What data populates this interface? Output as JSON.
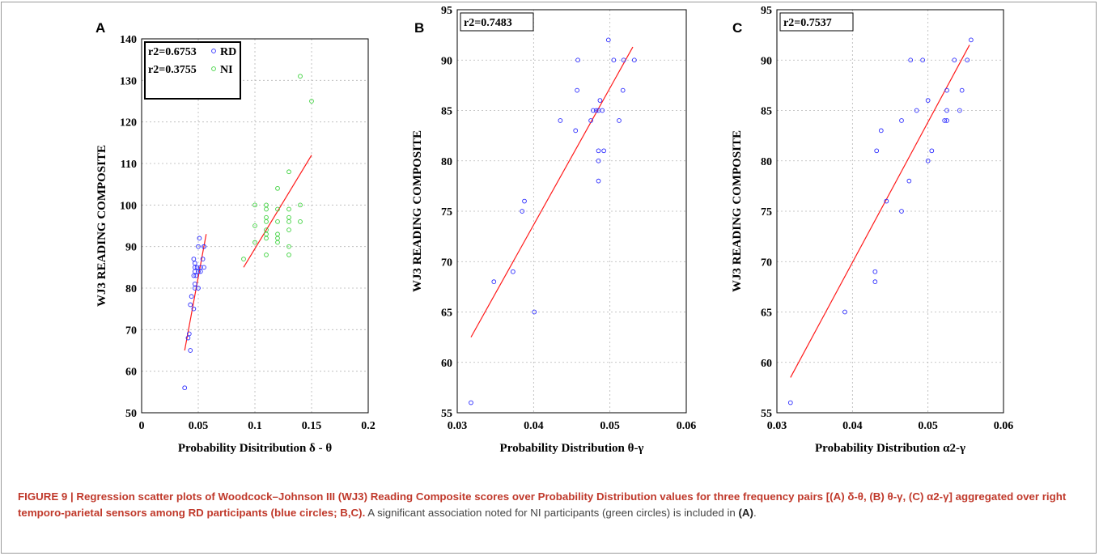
{
  "chart_data": [
    {
      "panel": "A",
      "type": "scatter",
      "xlabel": "Probability Disitribution δ - θ",
      "ylabel": "WJ3 READING COMPOSITE",
      "xlim": [
        0,
        0.2
      ],
      "ylim": [
        50,
        140
      ],
      "xticks": [
        "0",
        "0.05",
        "0.1",
        "0.15",
        "0.2"
      ],
      "yticks": [
        "50",
        "60",
        "70",
        "80",
        "90",
        "100",
        "110",
        "120",
        "130",
        "140"
      ],
      "grid": true,
      "legend": {
        "placement": "top-left",
        "entries": [
          {
            "text": "r2=0.6753",
            "series": "RD"
          },
          {
            "text": "r2=0.3755",
            "series": "NI"
          }
        ]
      },
      "series": [
        {
          "name": "RD",
          "color": "#2a2aff",
          "points": [
            [
              0.038,
              56
            ],
            [
              0.043,
              65
            ],
            [
              0.041,
              68
            ],
            [
              0.042,
              69
            ],
            [
              0.046,
              75
            ],
            [
              0.043,
              76
            ],
            [
              0.044,
              78
            ],
            [
              0.047,
              80
            ],
            [
              0.05,
              80
            ],
            [
              0.047,
              81
            ],
            [
              0.046,
              83
            ],
            [
              0.048,
              83
            ],
            [
              0.047,
              84
            ],
            [
              0.05,
              84
            ],
            [
              0.052,
              84
            ],
            [
              0.047,
              85
            ],
            [
              0.049,
              85
            ],
            [
              0.052,
              85
            ],
            [
              0.055,
              85
            ],
            [
              0.047,
              86
            ],
            [
              0.046,
              87
            ],
            [
              0.054,
              87
            ],
            [
              0.05,
              90
            ],
            [
              0.055,
              90
            ],
            [
              0.055,
              90
            ],
            [
              0.051,
              92
            ]
          ],
          "fit": [
            [
              0.038,
              65
            ],
            [
              0.057,
              93
            ]
          ]
        },
        {
          "name": "NI",
          "color": "#3ad13a",
          "points": [
            [
              0.09,
              87
            ],
            [
              0.11,
              88
            ],
            [
              0.12,
              91
            ],
            [
              0.13,
              88
            ],
            [
              0.1,
              91
            ],
            [
              0.11,
              92
            ],
            [
              0.12,
              92
            ],
            [
              0.13,
              90
            ],
            [
              0.11,
              93
            ],
            [
              0.12,
              93
            ],
            [
              0.11,
              94
            ],
            [
              0.13,
              94
            ],
            [
              0.1,
              95
            ],
            [
              0.11,
              96
            ],
            [
              0.12,
              96
            ],
            [
              0.13,
              96
            ],
            [
              0.14,
              96
            ],
            [
              0.11,
              97
            ],
            [
              0.13,
              97
            ],
            [
              0.11,
              99
            ],
            [
              0.12,
              99
            ],
            [
              0.13,
              99
            ],
            [
              0.1,
              100
            ],
            [
              0.11,
              100
            ],
            [
              0.14,
              100
            ],
            [
              0.12,
              104
            ],
            [
              0.13,
              108
            ],
            [
              0.15,
              125
            ],
            [
              0.14,
              131
            ]
          ],
          "fit": [
            [
              0.09,
              85
            ],
            [
              0.15,
              112
            ]
          ]
        }
      ]
    },
    {
      "panel": "B",
      "type": "scatter",
      "xlabel": "Probability Distribution  θ-γ",
      "ylabel": "WJ3 READING COMPOSITE",
      "xlim": [
        0.03,
        0.06
      ],
      "ylim": [
        55,
        95
      ],
      "xticks": [
        "0.03",
        "0.04",
        "0.05",
        "0.06"
      ],
      "yticks": [
        "55",
        "60",
        "65",
        "70",
        "75",
        "80",
        "85",
        "90",
        "95"
      ],
      "grid": true,
      "legend": {
        "placement": "top-left",
        "entries": [
          {
            "text": "r2=0.7483"
          }
        ]
      },
      "series": [
        {
          "color": "#2a2aff",
          "points": [
            [
              0.0318,
              56
            ],
            [
              0.0348,
              68
            ],
            [
              0.0373,
              69
            ],
            [
              0.0401,
              65
            ],
            [
              0.0385,
              75
            ],
            [
              0.0388,
              76
            ],
            [
              0.0485,
              78
            ],
            [
              0.0485,
              80
            ],
            [
              0.0485,
              81
            ],
            [
              0.0492,
              81
            ],
            [
              0.0455,
              83
            ],
            [
              0.0435,
              84
            ],
            [
              0.0512,
              84
            ],
            [
              0.0475,
              84
            ],
            [
              0.0478,
              85
            ],
            [
              0.0482,
              85
            ],
            [
              0.0485,
              85
            ],
            [
              0.049,
              85
            ],
            [
              0.0487,
              86
            ],
            [
              0.0457,
              87
            ],
            [
              0.0517,
              87
            ],
            [
              0.0458,
              90
            ],
            [
              0.0505,
              90
            ],
            [
              0.0518,
              90
            ],
            [
              0.0532,
              90
            ],
            [
              0.0498,
              92
            ]
          ],
          "fit": [
            [
              0.0318,
              62.5
            ],
            [
              0.053,
              91.3
            ]
          ]
        }
      ]
    },
    {
      "panel": "C",
      "type": "scatter",
      "xlabel": "Probability Distribution  α2-γ",
      "ylabel": "WJ3 READING COMPOSITE",
      "xlim": [
        0.03,
        0.06
      ],
      "ylim": [
        55,
        95
      ],
      "xticks": [
        "0.03",
        "0.04",
        "0.05",
        "0.06"
      ],
      "yticks": [
        "55",
        "60",
        "65",
        "70",
        "75",
        "80",
        "85",
        "90",
        "95"
      ],
      "grid": true,
      "legend": {
        "placement": "top-left",
        "entries": [
          {
            "text": "r2=0.7537"
          }
        ]
      },
      "series": [
        {
          "color": "#2a2aff",
          "points": [
            [
              0.0318,
              56
            ],
            [
              0.039,
              65
            ],
            [
              0.043,
              68
            ],
            [
              0.043,
              69
            ],
            [
              0.0465,
              75
            ],
            [
              0.0445,
              76
            ],
            [
              0.0475,
              78
            ],
            [
              0.05,
              80
            ],
            [
              0.0505,
              81
            ],
            [
              0.0432,
              81
            ],
            [
              0.0438,
              83
            ],
            [
              0.0522,
              84
            ],
            [
              0.0525,
              84
            ],
            [
              0.0465,
              84
            ],
            [
              0.0485,
              85
            ],
            [
              0.0525,
              85
            ],
            [
              0.0542,
              85
            ],
            [
              0.05,
              86
            ],
            [
              0.0525,
              87
            ],
            [
              0.0545,
              87
            ],
            [
              0.0477,
              90
            ],
            [
              0.0493,
              90
            ],
            [
              0.0535,
              90
            ],
            [
              0.0552,
              90
            ],
            [
              0.0557,
              92
            ]
          ],
          "fit": [
            [
              0.0318,
              58.5
            ],
            [
              0.0555,
              91.5
            ]
          ]
        }
      ]
    }
  ],
  "caption": {
    "lead": "FIGURE 9 | Regression scatter plots of Woodcock–Johnson III (WJ3) Reading Composite scores over Probability Distribution values for three frequency pairs [(A) δ-θ, (B) θ-γ, (C) α2-γ] aggregated over right temporo-parietal sensors among RD participants (blue circles; B,C).",
    "body": " A significant association noted for NI participants (green circles) is included in ",
    "ref": "(A)",
    "end": "."
  }
}
